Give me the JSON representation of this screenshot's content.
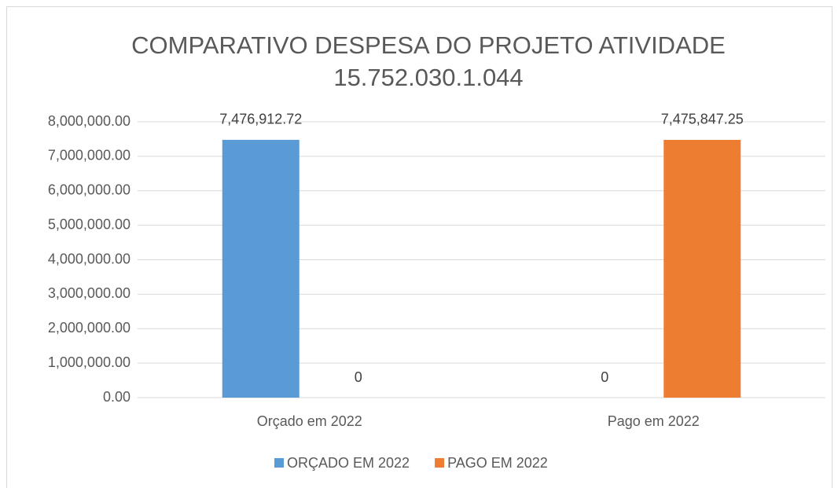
{
  "chart_data": {
    "type": "bar",
    "title": [
      "COMPARATIVO DESPESA DO PROJETO ATIVIDADE",
      "15.752.030.1.044"
    ],
    "categories": [
      "Orçado em 2022",
      "Pago em 2022"
    ],
    "series": [
      {
        "name": "ORÇADO EM 2022",
        "color": "#5b9bd5",
        "values": [
          7476912.72,
          0
        ],
        "value_labels": [
          "7,476,912.72",
          "0"
        ]
      },
      {
        "name": "PAGO EM 2022",
        "color": "#ed7d31",
        "values": [
          0,
          7475847.25
        ],
        "value_labels": [
          "0",
          "7,475,847.25"
        ]
      }
    ],
    "ylim": [
      0,
      8000000
    ],
    "yticks": [
      {
        "value": 0,
        "label": "0.00"
      },
      {
        "value": 1000000,
        "label": "1,000,000.00"
      },
      {
        "value": 2000000,
        "label": "2,000,000.00"
      },
      {
        "value": 3000000,
        "label": "3,000,000.00"
      },
      {
        "value": 4000000,
        "label": "4,000,000.00"
      },
      {
        "value": 5000000,
        "label": "5,000,000.00"
      },
      {
        "value": 6000000,
        "label": "6,000,000.00"
      },
      {
        "value": 7000000,
        "label": "7,000,000.00"
      },
      {
        "value": 8000000,
        "label": "8,000,000.00"
      }
    ],
    "grid": true,
    "legend": "bottom"
  }
}
